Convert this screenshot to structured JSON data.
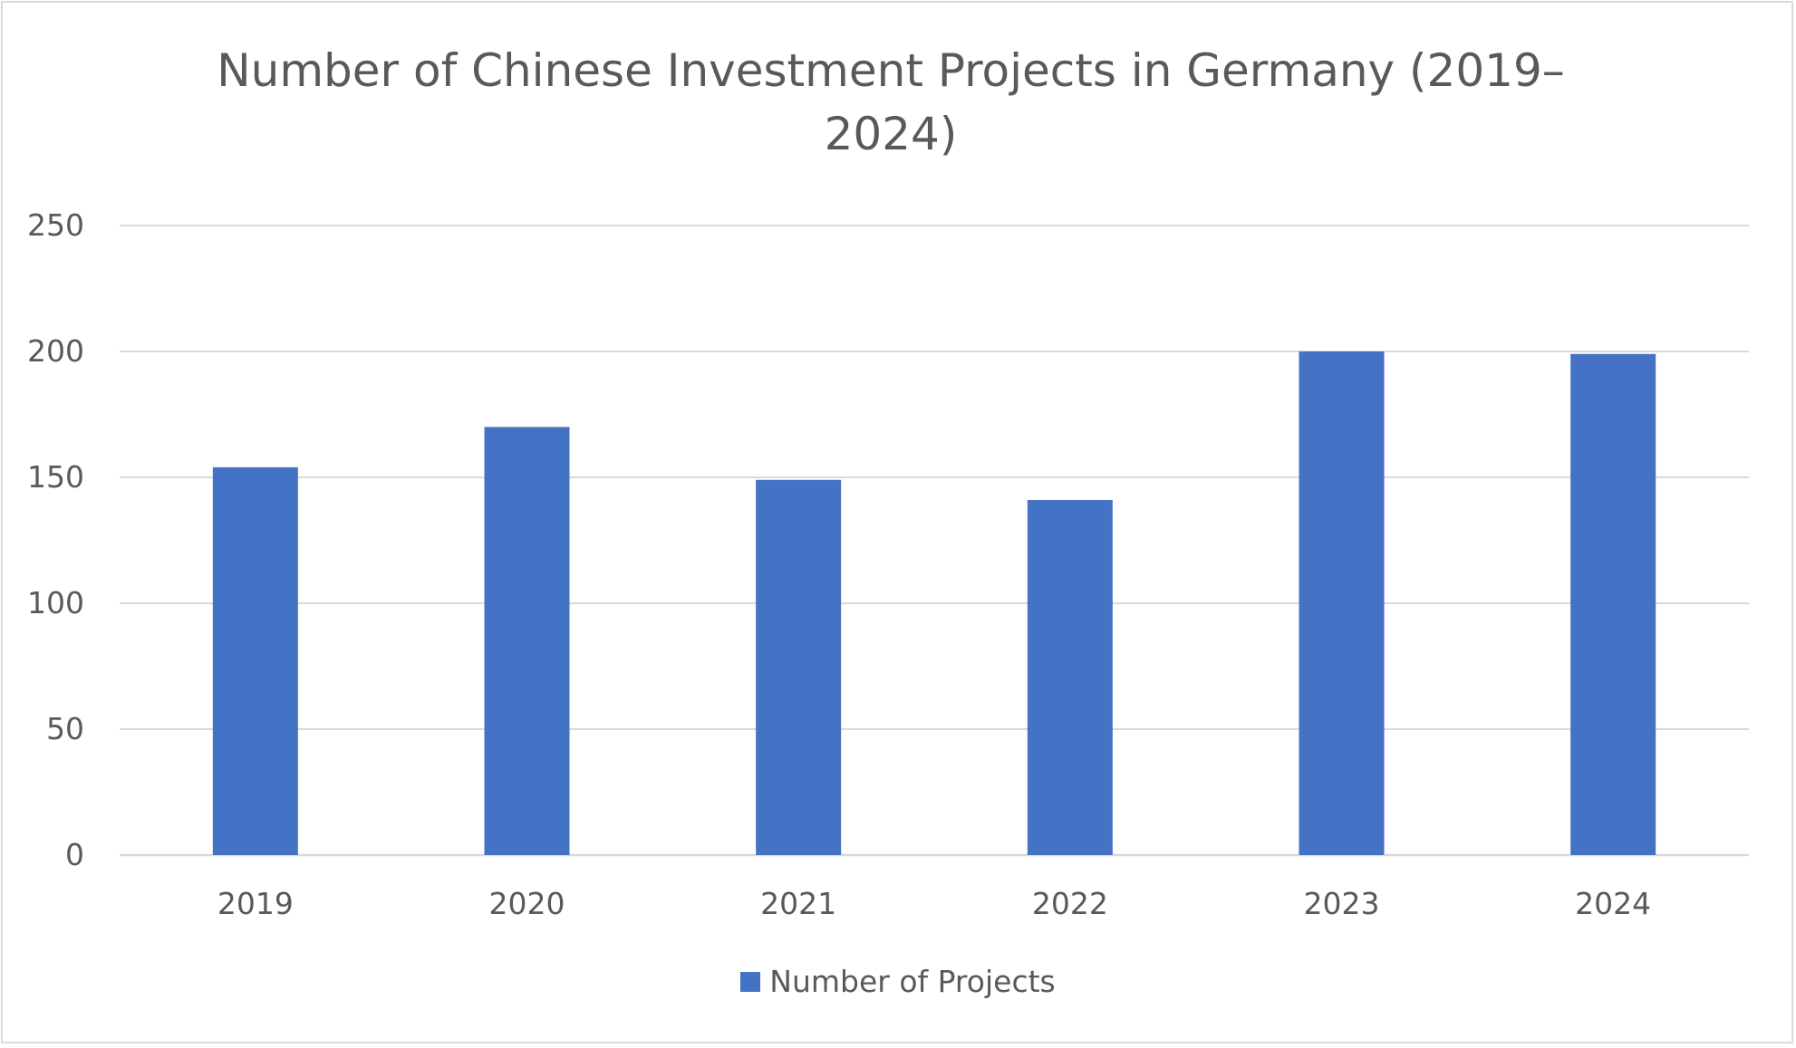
{
  "chart_data": {
    "type": "bar",
    "title": "Number of Chinese Investment Projects in Germany (2019–2024)",
    "categories": [
      "2019",
      "2020",
      "2021",
      "2022",
      "2023",
      "2024"
    ],
    "series": [
      {
        "name": "Number of Projects",
        "values": [
          154,
          170,
          149,
          141,
          200,
          199
        ],
        "color": "#4472c4"
      }
    ],
    "ylim": [
      0,
      250
    ],
    "yticks": [
      "0",
      "50",
      "100",
      "150",
      "200",
      "250"
    ],
    "grid": true,
    "legend_position": "bottom",
    "gridline_color": "#d9d9d9",
    "text_color": "#595959"
  }
}
